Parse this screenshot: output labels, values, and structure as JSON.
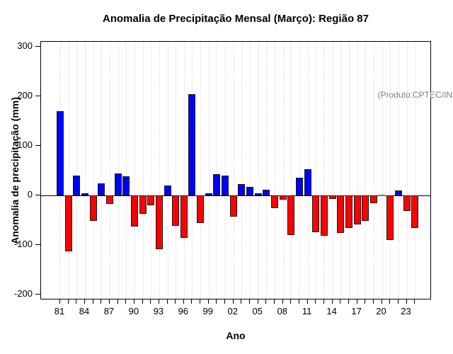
{
  "title": "Anomalia de Precipitação Mensal (Março): Região 87",
  "annotation": "(Produto:CPTEC/INPE)",
  "chart_data": {
    "type": "bar",
    "title": "Anomalia de Precipitação Mensal (Março): Região 87",
    "xlabel": "Ano",
    "ylabel": "Anomalia de precipitação (mm)",
    "ylim": [
      -200,
      300
    ],
    "grid": "vertical-dotted",
    "legend": "none",
    "annotation": "(Produto:CPTEC/INPE)",
    "ytick_labels": [
      "300",
      "200",
      "100",
      "0",
      "-100",
      "-200"
    ],
    "ytick_values": [
      300,
      200,
      100,
      0,
      -100,
      -200
    ],
    "x_tick_label_step": 3,
    "x_tick_labels": [
      "81",
      "84",
      "87",
      "90",
      "93",
      "96",
      "99",
      "02",
      "05",
      "08",
      "11",
      "14",
      "17",
      "20",
      "23"
    ],
    "years": [
      1981,
      1982,
      1983,
      1984,
      1985,
      1986,
      1987,
      1988,
      1989,
      1990,
      1991,
      1992,
      1993,
      1994,
      1995,
      1996,
      1997,
      1998,
      1999,
      2000,
      2001,
      2002,
      2003,
      2004,
      2005,
      2006,
      2007,
      2008,
      2009,
      2010,
      2011,
      2012,
      2013,
      2014,
      2015,
      2016,
      2017,
      2018,
      2019,
      2020,
      2021,
      2022,
      2023,
      2024
    ],
    "values": [
      170,
      -113,
      40,
      5,
      -51,
      25,
      -17,
      44,
      38,
      -63,
      -37,
      -20,
      -108,
      20,
      -62,
      -86,
      205,
      -55,
      5,
      43,
      40,
      -43,
      23,
      17,
      4,
      11,
      -26,
      -8,
      -80,
      36,
      53,
      -74,
      -82,
      -7,
      -75,
      -65,
      -58,
      -51,
      -15,
      0,
      -90,
      10,
      -31,
      -66
    ],
    "colors": {
      "positive": "#0000ff",
      "negative": "#ff0000",
      "zero_bar": "#777777",
      "bar_border": "#1a1a1a",
      "grid": "#d9d9d9",
      "annotation_text": "#808080",
      "axis": "#000000"
    }
  }
}
